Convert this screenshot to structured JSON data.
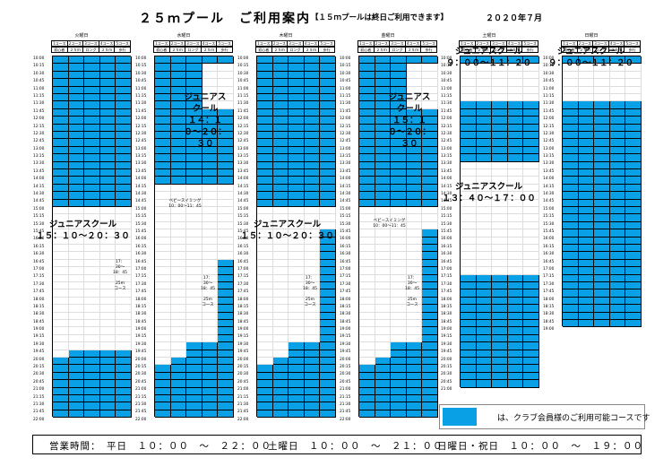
{
  "title": {
    "main": "２５ｍプール　ご利用案内",
    "note": "【１５ｍプールは終日ご利用できます】",
    "date": "２０２０年７月"
  },
  "course_headers": [
    "1コース",
    "2コース",
    "3コース",
    "4コース",
    "5コース"
  ],
  "course_types": [
    "初心者",
    "２５ｍ",
    "ロング",
    "２５ｍ",
    "歩行"
  ],
  "times_weekday": [
    "10:00",
    "10:15",
    "10:30",
    "10:45",
    "11:00",
    "11:15",
    "11:30",
    "11:45",
    "12:00",
    "12:15",
    "12:30",
    "12:45",
    "13:00",
    "13:15",
    "13:30",
    "13:45",
    "14:00",
    "14:15",
    "14:30",
    "14:45",
    "15:00",
    "15:15",
    "15:30",
    "15:45",
    "16:00",
    "16:15",
    "16:30",
    "16:45",
    "17:00",
    "17:15",
    "17:30",
    "17:45",
    "18:00",
    "18:15",
    "18:30",
    "18:45",
    "19:00",
    "19:15",
    "19:30",
    "19:45",
    "20:00",
    "20:15",
    "20:30",
    "20:45",
    "21:00",
    "21:15",
    "21:30",
    "21:45",
    "22:00"
  ],
  "days": [
    {
      "name": "火曜日",
      "labels": [
        {
          "text": "ジュニアスクール\n１５：１０〜２０：３０",
          "size": "big"
        },
        {
          "text": "17：30〜\n18：45\n\n25m\nコース",
          "size": "small"
        }
      ]
    },
    {
      "name": "水曜日",
      "labels": [
        {
          "text": "ベビースイミング\n10：00〜11：45",
          "size": "small"
        },
        {
          "text": "ジュニアスクール\n１４：１０〜２０：３０",
          "size": "big"
        },
        {
          "text": "17：30〜\n18：45\n\n25m\nコース",
          "size": "small"
        }
      ]
    },
    {
      "name": "木曜日",
      "labels": [
        {
          "text": "ジュニアスクール\n１５：１０〜２０：３０",
          "size": "big"
        },
        {
          "text": "17：30〜\n18：45\n\n25m\nコース",
          "size": "small"
        }
      ]
    },
    {
      "name": "金曜日",
      "labels": [
        {
          "text": "ベビースイミング\n10：00〜11：45",
          "size": "small"
        },
        {
          "text": "ジュニアスクール\n１５：１０〜２０：３０",
          "size": "big"
        },
        {
          "text": "17：30〜\n18：45\n\n25m\nコース",
          "size": "small"
        }
      ]
    },
    {
      "name": "土曜日",
      "labels": [
        {
          "text": "ジュニアスクール\n９：００〜１１：２０",
          "size": "big"
        },
        {
          "text": "ジュニアスクール\n１３：４０〜１７：００",
          "size": "big"
        }
      ]
    },
    {
      "name": "日曜日",
      "labels": [
        {
          "text": "ジュニアスクール\n９：００〜１１：２０",
          "size": "big"
        }
      ]
    }
  ],
  "legend": {
    "text": "は、クラブ会員様のご利用可能コースです",
    "color": "#0aa0e6"
  },
  "hours": {
    "label": "営業時間：",
    "weekday": "平日　１０：００　〜　２２：００",
    "saturday": "土曜日　１０：００　〜　２１：００",
    "sunday": "日曜日・祝日　１０：００　〜　１９：００"
  }
}
